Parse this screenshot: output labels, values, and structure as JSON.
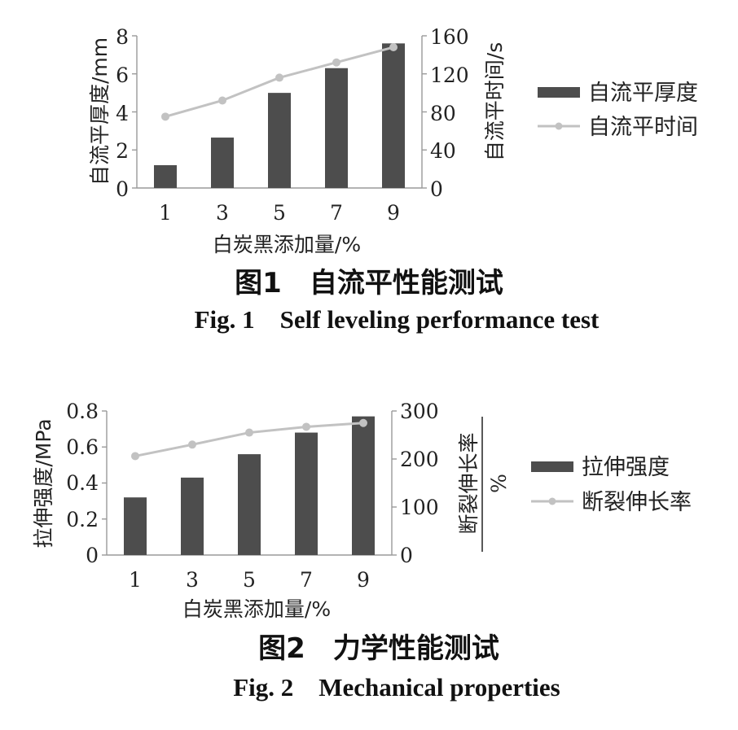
{
  "colors": {
    "bar": "#4d4d4d",
    "line": "#c2c2c2",
    "axis": "#9a9a9a"
  },
  "chart_data": [
    {
      "type": "bar+line",
      "title": "图1　自流平性能测试",
      "subtitle": "Fig. 1　Self leveling performance test",
      "xlabel": "白炭黑添加量/%",
      "ylabel_left": "自流平厚度/mm",
      "ylabel_right": "自流平时间/s",
      "categories": [
        "1",
        "3",
        "5",
        "7",
        "9"
      ],
      "ylim_left": [
        0,
        8
      ],
      "ylim_right": [
        0,
        160
      ],
      "yticks_left": [
        "0",
        "2",
        "4",
        "6",
        "8"
      ],
      "yticks_right": [
        "0",
        "40",
        "80",
        "120",
        "160"
      ],
      "series": [
        {
          "name": "自流平厚度",
          "type": "bar",
          "axis": "left",
          "values": [
            1.2,
            2.65,
            5.0,
            6.3,
            7.6
          ]
        },
        {
          "name": "自流平时间",
          "type": "line",
          "axis": "right",
          "values": [
            75,
            92,
            116,
            132,
            148
          ]
        }
      ],
      "legend_position": "right"
    },
    {
      "type": "bar+line",
      "title": "图2　力学性能测试",
      "subtitle": "Fig. 2　Mechanical properties",
      "xlabel": "白炭黑添加量/%",
      "ylabel_left": "拉伸强度/MPa",
      "ylabel_right": "断裂伸长率",
      "ylabel_right_unit": "%",
      "categories": [
        "1",
        "3",
        "5",
        "7",
        "9"
      ],
      "ylim_left": [
        0,
        0.8
      ],
      "ylim_right": [
        0,
        300
      ],
      "yticks_left": [
        "0",
        "0.2",
        "0.4",
        "0.6",
        "0.8"
      ],
      "yticks_right": [
        "0",
        "100",
        "200",
        "300"
      ],
      "series": [
        {
          "name": "拉伸强度",
          "type": "bar",
          "axis": "left",
          "values": [
            0.32,
            0.43,
            0.56,
            0.68,
            0.77
          ]
        },
        {
          "name": "断裂伸长率",
          "type": "line",
          "axis": "right",
          "values": [
            206,
            230,
            255,
            267,
            275
          ]
        }
      ],
      "legend_position": "right"
    }
  ]
}
